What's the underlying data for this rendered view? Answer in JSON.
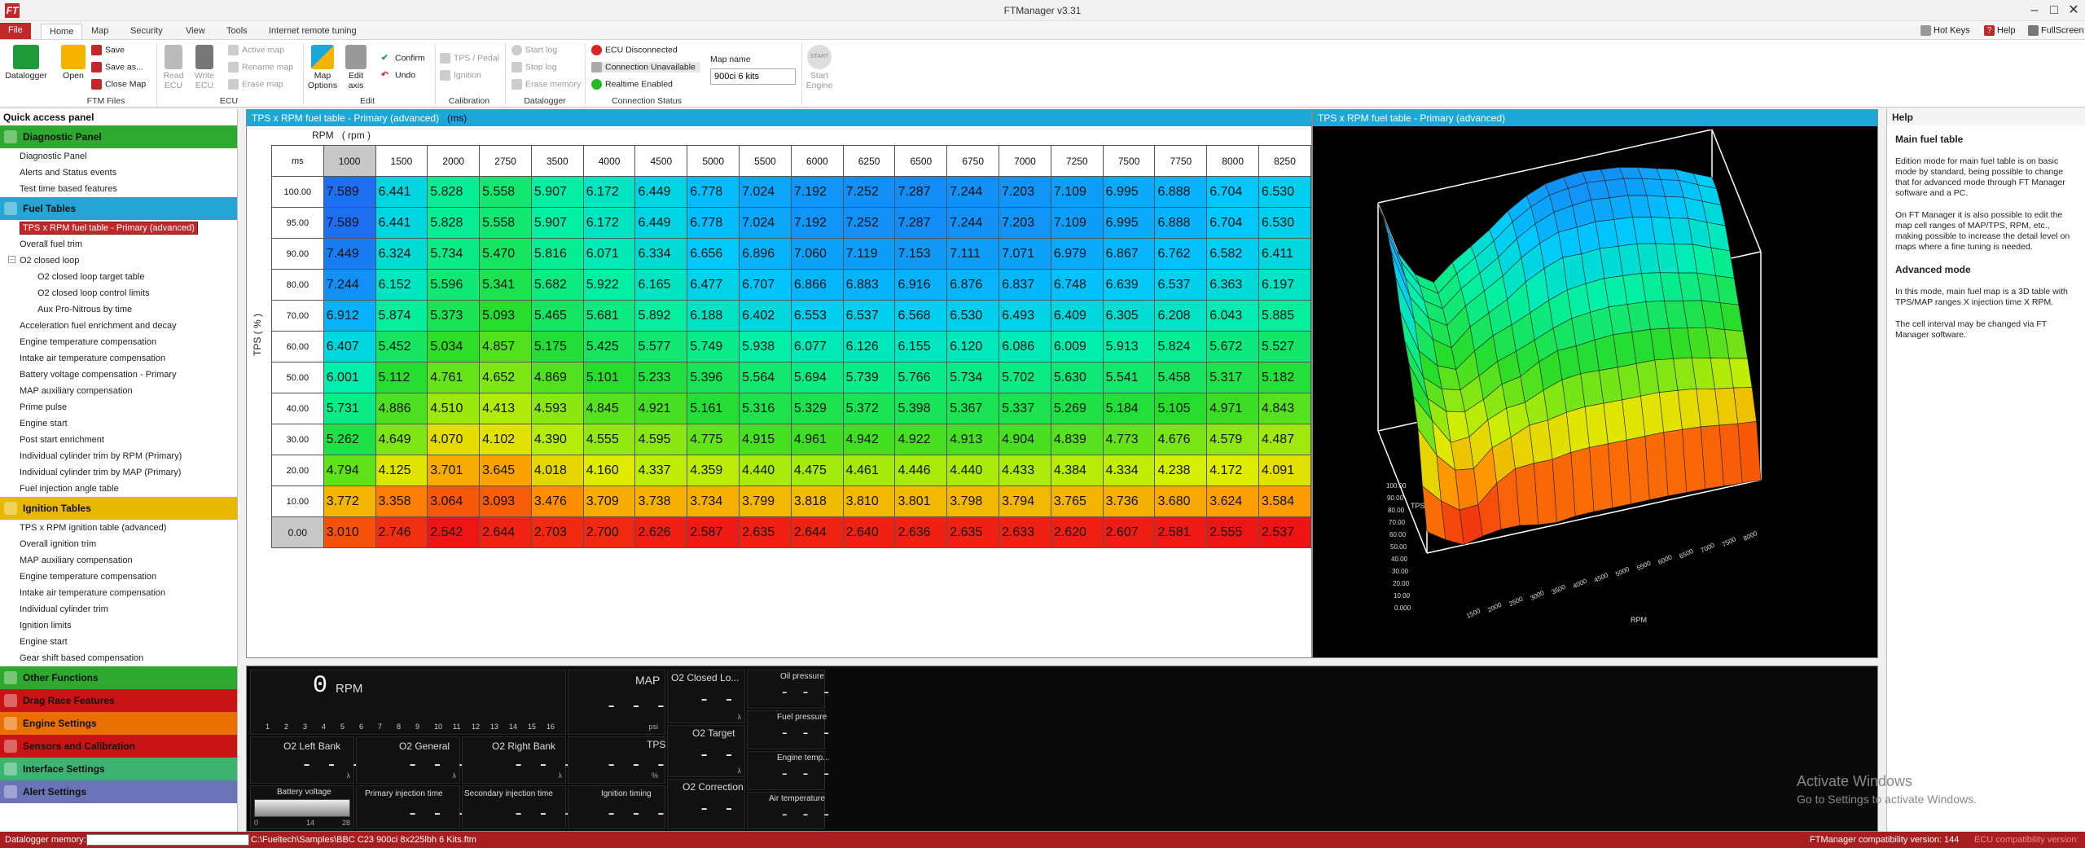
{
  "app": {
    "title": "FTManager v3.31",
    "logo": "FT"
  },
  "menu_tabs": [
    "File",
    "Home",
    "Map",
    "Security",
    "View",
    "Tools",
    "Internet remote tuning"
  ],
  "top_right": {
    "hot_keys": "Hot Keys",
    "help": "Help",
    "fullscreen": "FullScreen"
  },
  "ribbon": {
    "datalogger": "Datalogger",
    "open": "Open",
    "save": "Save",
    "save_as": "Save as...",
    "close_map": "Close Map",
    "ftm_files": "FTM Files",
    "read_ecu": "Read ECU",
    "write_ecu": "Write ECU",
    "ecu_group": "ECU",
    "active_map": "Active map",
    "rename_map": "Rename map",
    "erase_map": "Erase map",
    "map_options": "Map Options",
    "edit_axis": "Edit axis",
    "confirm": "Confirm",
    "undo": "Undo",
    "edit_group": "Edit",
    "tps_pedal": "TPS / Pedal",
    "ignition": "Ignition",
    "calibration_group": "Calibration",
    "start_log": "Start log",
    "stop_log": "Stop log",
    "erase_memory": "Erase memory",
    "datalogger_group": "Datalogger",
    "ecu_disconnected": "ECU Disconnected",
    "connection_unavailable": "Connection Unavailable",
    "realtime_enabled": "Realtime Enabled",
    "connection_group": "Connection Status",
    "map_name_label": "Map name",
    "map_name_value": "900ci 6 kits",
    "start_engine": "Start Engine",
    "start_badge": "START"
  },
  "quick_access": {
    "title": "Quick access panel",
    "sections": [
      {
        "label": "Diagnostic Panel",
        "color": "#2ea82e",
        "items": [
          "Diagnostic Panel",
          "Alerts and Status events",
          "Test time based features"
        ]
      },
      {
        "label": "Fuel Tables",
        "color": "#23a6d5",
        "items": []
      },
      {
        "label": "Ignition Tables",
        "color": "#e8b800",
        "items": [
          "TPS x RPM ignition table (advanced)",
          "Overall ignition trim",
          "MAP auxiliary compensation",
          "Engine temperature compensation",
          "Intake air temperature compensation",
          "Individual cylinder trim",
          "Ignition limits",
          "Engine start",
          "Gear shift based compensation"
        ]
      },
      {
        "label": "Other Functions",
        "color": "#2ea82e",
        "items": []
      },
      {
        "label": "Drag Race Features",
        "color": "#c81414",
        "items": []
      },
      {
        "label": "Engine Settings",
        "color": "#e87000",
        "items": []
      },
      {
        "label": "Sensors and Calibration",
        "color": "#c81414",
        "items": []
      },
      {
        "label": "Interface Settings",
        "color": "#3cb371",
        "items": []
      },
      {
        "label": "Alert Settings",
        "color": "#6a72b8",
        "items": []
      }
    ],
    "fuel_items": {
      "selected": "TPS x RPM fuel table - Primary (advanced)",
      "overall": "Overall fuel trim",
      "o2": "O2 closed loop",
      "o2_sub": [
        "O2 closed loop target table",
        "O2 closed loop control limits",
        "Aux Pro-Nitrous by time"
      ],
      "rest": [
        "Acceleration fuel enrichment and decay",
        "Engine temperature compensation",
        "Intake air temperature compensation",
        "Battery voltage compensation - Primary",
        "MAP auxiliary compensation",
        "Prime pulse",
        "Engine start",
        "Post start enrichment",
        "Individual cylinder trim by RPM (Primary)",
        "Individual cylinder trim by MAP (Primary)",
        "Fuel injection angle table"
      ]
    }
  },
  "fuel_table": {
    "title": "TPS x RPM fuel table - Primary (advanced)",
    "unit": "(ms)",
    "rpm_label": "RPM",
    "rpm_unit": "( rpm )",
    "corner": "ms",
    "tps_label": "TPS ( % )",
    "rpm": [
      "1000",
      "1500",
      "2000",
      "2750",
      "3500",
      "4000",
      "4500",
      "5000",
      "5500",
      "6000",
      "6250",
      "6500",
      "6750",
      "7000",
      "7250",
      "7500",
      "7750",
      "8000",
      "8250"
    ],
    "tps": [
      "100.00",
      "95.00",
      "90.00",
      "80.00",
      "70.00",
      "60.00",
      "50.00",
      "40.00",
      "30.00",
      "20.00",
      "10.00",
      "0.00"
    ],
    "values": [
      [
        "7.589",
        "6.441",
        "5.828",
        "5.558",
        "5.907",
        "6.172",
        "6.449",
        "6.778",
        "7.024",
        "7.192",
        "7.252",
        "7.287",
        "7.244",
        "7.203",
        "7.109",
        "6.995",
        "6.888",
        "6.704",
        "6.530"
      ],
      [
        "7.589",
        "6.441",
        "5.828",
        "5.558",
        "5.907",
        "6.172",
        "6.449",
        "6.778",
        "7.024",
        "7.192",
        "7.252",
        "7.287",
        "7.244",
        "7.203",
        "7.109",
        "6.995",
        "6.888",
        "6.704",
        "6.530"
      ],
      [
        "7.449",
        "6.324",
        "5.734",
        "5.470",
        "5.816",
        "6.071",
        "6.334",
        "6.656",
        "6.896",
        "7.060",
        "7.119",
        "7.153",
        "7.111",
        "7.071",
        "6.979",
        "6.867",
        "6.762",
        "6.582",
        "6.411"
      ],
      [
        "7.244",
        "6.152",
        "5.596",
        "5.341",
        "5.682",
        "5.922",
        "6.165",
        "6.477",
        "6.707",
        "6.866",
        "6.883",
        "6.916",
        "6.876",
        "6.837",
        "6.748",
        "6.639",
        "6.537",
        "6.363",
        "6.197"
      ],
      [
        "6.912",
        "5.874",
        "5.373",
        "5.093",
        "5.465",
        "5.681",
        "5.892",
        "6.188",
        "6.402",
        "6.553",
        "6.537",
        "6.568",
        "6.530",
        "6.493",
        "6.409",
        "6.305",
        "6.208",
        "6.043",
        "5.885"
      ],
      [
        "6.407",
        "5.452",
        "5.034",
        "4.857",
        "5.175",
        "5.425",
        "5.577",
        "5.749",
        "5.938",
        "6.077",
        "6.126",
        "6.155",
        "6.120",
        "6.086",
        "6.009",
        "5.913",
        "5.824",
        "5.672",
        "5.527"
      ],
      [
        "6.001",
        "5.112",
        "4.761",
        "4.652",
        "4.869",
        "5.101",
        "5.233",
        "5.396",
        "5.564",
        "5.694",
        "5.739",
        "5.766",
        "5.734",
        "5.702",
        "5.630",
        "5.541",
        "5.458",
        "5.317",
        "5.182"
      ],
      [
        "5.731",
        "4.886",
        "4.510",
        "4.413",
        "4.593",
        "4.845",
        "4.921",
        "5.161",
        "5.316",
        "5.329",
        "5.372",
        "5.398",
        "5.367",
        "5.337",
        "5.269",
        "5.184",
        "5.105",
        "4.971",
        "4.843"
      ],
      [
        "5.262",
        "4.649",
        "4.070",
        "4.102",
        "4.390",
        "4.555",
        "4.595",
        "4.775",
        "4.915",
        "4.961",
        "4.942",
        "4.922",
        "4.913",
        "4.904",
        "4.839",
        "4.773",
        "4.676",
        "4.579",
        "4.487"
      ],
      [
        "4.794",
        "4.125",
        "3.701",
        "3.645",
        "4.018",
        "4.160",
        "4.337",
        "4.359",
        "4.440",
        "4.475",
        "4.461",
        "4.446",
        "4.440",
        "4.433",
        "4.384",
        "4.334",
        "4.238",
        "4.172",
        "4.091"
      ],
      [
        "3.772",
        "3.358",
        "3.064",
        "3.093",
        "3.476",
        "3.709",
        "3.738",
        "3.734",
        "3.799",
        "3.818",
        "3.810",
        "3.801",
        "3.798",
        "3.794",
        "3.765",
        "3.736",
        "3.680",
        "3.624",
        "3.584"
      ],
      [
        "3.010",
        "2.746",
        "2.542",
        "2.644",
        "2.703",
        "2.700",
        "2.626",
        "2.587",
        "2.635",
        "2.644",
        "2.640",
        "2.636",
        "2.635",
        "2.633",
        "2.620",
        "2.607",
        "2.581",
        "2.555",
        "2.537"
      ]
    ]
  },
  "chart_data": {
    "type": "surface3d",
    "title": "TPS x RPM fuel table - Primary (advanced)",
    "axis_x_label": "RPM",
    "axis_y_label": "TPS",
    "x_ticks": [
      "1500",
      "2000",
      "2500",
      "3000",
      "3500",
      "4000",
      "4500",
      "5000",
      "5500",
      "6000",
      "6500",
      "7000",
      "7500",
      "8000"
    ],
    "y_ticks": [
      "0.000",
      "10.00",
      "20.00",
      "30.00",
      "40.00",
      "50.00",
      "60.00",
      "70.00",
      "80.00",
      "90.00",
      "100.00"
    ],
    "source": "fuel_table.values"
  },
  "help": {
    "title": "Help",
    "h1": "Main fuel table",
    "p1": "Edition mode for main fuel table is on basic mode by standard, being possible to change that for advanced mode through FT Manager software and a PC.",
    "p2": "On FT Manager it is also possible to edit the map cell ranges of MAP/TPS, RPM, etc., making possible to increase the detail level on maps where a fine tuning is needed.",
    "h2": "Advanced mode",
    "p3": "In this mode, main fuel map is a 3D table with TPS/MAP ranges X injection time X RPM.",
    "p4": "The cell interval may be changed via FT Manager software."
  },
  "dashboard": {
    "rpm_value": "0",
    "rpm_unit": "RPM",
    "rpm_ticks": [
      "1",
      "2",
      "3",
      "4",
      "5",
      "6",
      "7",
      "8",
      "9",
      "10",
      "11",
      "12",
      "13",
      "14",
      "15",
      "16"
    ],
    "o2_left": "O2 Left Bank",
    "o2_general": "O2 General",
    "o2_right": "O2 Right Bank",
    "map": "MAP",
    "map_unit": "psi",
    "tps": "TPS",
    "tps_unit": "%",
    "o2_closed": "O2 Closed Lo...",
    "o2_target": "O2 Target",
    "o2_correction": "O2 Correction",
    "oil_pressure": "Oil pressure",
    "fuel_pressure": "Fuel pressure",
    "engine_temp": "Engine temp...",
    "air_temp": "Air temperature",
    "battery": "Battery voltage",
    "batt_min": "0",
    "batt_mid": "14",
    "batt_max": "28",
    "primary_inj": "Primary injection time",
    "secondary_inj": "Secondary injection time",
    "ignition_timing": "Ignition timing",
    "dash": "- - -",
    "lambda_unit": "λ"
  },
  "watermark": {
    "line1": "Activate Windows",
    "line2": "Go to Settings to activate Windows."
  },
  "status": {
    "datalogger_memory": "Datalogger memory:",
    "file_path": "C:\\Fueltech\\Samples\\BBC C23 900ci 8x225lbh 6 Kits.ftm",
    "compat": "FTManager compatibility version: 144",
    "ecu_compat": "ECU compatibility version:"
  },
  "colors": {
    "accent": "#1ba8d6",
    "brand": "#c0282a"
  }
}
